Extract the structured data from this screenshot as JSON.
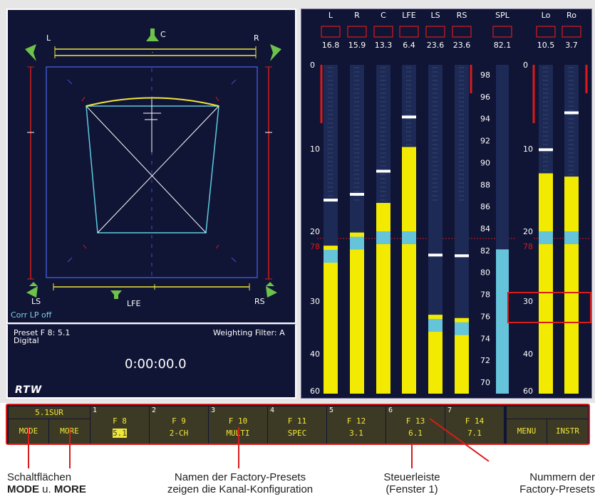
{
  "surround": {
    "labels": {
      "L": "L",
      "C": "C",
      "R": "R",
      "LS": "LS",
      "LFE": "LFE",
      "RS": "RS"
    },
    "status": "Corr LP off"
  },
  "info": {
    "preset": "Preset F 8: 5.1",
    "source": "Digital",
    "weighting": "Weighting Filter: A",
    "timecode": "0:00:00.0",
    "logo": "RTW"
  },
  "meters": {
    "channels": [
      {
        "name": "L",
        "value": "16.8",
        "level": 0.45,
        "peak": 16.3
      },
      {
        "name": "R",
        "value": "15.9",
        "level": 0.49,
        "peak": 15.6
      },
      {
        "name": "C",
        "value": "13.3",
        "level": 0.58,
        "peak": 12.8
      },
      {
        "name": "LFE",
        "value": "6.4",
        "level": 0.75,
        "peak": 6.3
      },
      {
        "name": "LS",
        "value": "23.6",
        "level": 0.24,
        "peak": 23.5
      },
      {
        "name": "RS",
        "value": "23.6",
        "level": 0.23,
        "peak": 23.6
      }
    ],
    "spl": {
      "name": "SPL",
      "value": "82.1",
      "level": 82.1
    },
    "downmix": [
      {
        "name": "Lo",
        "value": "10.5",
        "level": 0.67,
        "peak": 10.2
      },
      {
        "name": "Ro",
        "value": "3.7",
        "level": 0.66,
        "peak": 5.8
      }
    ],
    "scale_left": [
      "0",
      "10",
      "20",
      "30",
      "40",
      "60"
    ],
    "scale_right": [
      "0",
      "10",
      "20",
      "30",
      "40",
      "60"
    ],
    "spl_scale": [
      "98",
      "96",
      "94",
      "92",
      "90",
      "88",
      "86",
      "84",
      "82",
      "80",
      "78",
      "76",
      "74",
      "72",
      "70"
    ],
    "ref_label": "78",
    "colors": {
      "bar": "#f2ea00",
      "band": "#65c3da",
      "peak": "#ffffff",
      "warn": "#d81c1c"
    }
  },
  "controls": {
    "mode_top": "5.1SUR",
    "mode": "MODE",
    "more": "MORE",
    "presets": [
      {
        "num": "1",
        "name": "F 8",
        "sub": "5.1",
        "active": true
      },
      {
        "num": "2",
        "name": "F 9",
        "sub": "2-CH",
        "active": false
      },
      {
        "num": "3",
        "name": "F 10",
        "sub": "MULTI",
        "active": false
      },
      {
        "num": "4",
        "name": "F 11",
        "sub": "SPEC",
        "active": false
      },
      {
        "num": "5",
        "name": "F 12",
        "sub": "3.1",
        "active": false
      },
      {
        "num": "6",
        "name": "F 13",
        "sub": "6.1",
        "active": false
      },
      {
        "num": "7",
        "name": "F 14",
        "sub": "7.1",
        "active": false
      }
    ],
    "menu": "MENU",
    "instr": "INSTR"
  },
  "captions": {
    "c1a": "Schaltflächen",
    "c1b_bold1": "MODE",
    "c1b_mid": " u. ",
    "c1b_bold2": "MORE",
    "c2a": "Namen der Factory-Presets",
    "c2b": "zeigen die Kanal-Konfiguration",
    "c3a": "Steuerleiste",
    "c3b": "(Fenster 1)",
    "c4a": "Nummern der",
    "c4b": "Factory-Presets"
  }
}
